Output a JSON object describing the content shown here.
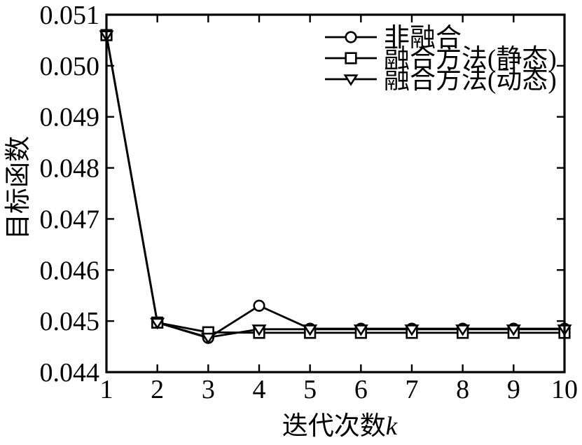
{
  "figure": {
    "background_color": "#ffffff",
    "foreground_color": "#000000"
  },
  "chart_data": {
    "type": "line",
    "title": "",
    "xlabel": "迭代次数k",
    "xlabel_prefix": "迭代次数",
    "xlabel_italic": "k",
    "ylabel": "目标函数",
    "x": [
      1,
      2,
      3,
      4,
      5,
      6,
      7,
      8,
      9,
      10
    ],
    "xlim": [
      1,
      10
    ],
    "ylim": [
      0.044,
      0.051
    ],
    "xticks": [
      "1",
      "2",
      "3",
      "4",
      "5",
      "6",
      "7",
      "8",
      "9",
      "10"
    ],
    "yticks": [
      "0.044",
      "0.045",
      "0.046",
      "0.047",
      "0.048",
      "0.049",
      "0.050",
      "0.051"
    ],
    "grid": false,
    "legend_position": "upper-right-inside",
    "line_color": "#000000",
    "marker_fill": "#ffffff",
    "series": [
      {
        "name": "非融合",
        "marker": "circle",
        "values": [
          0.0506,
          0.04497,
          0.04467,
          0.0453,
          0.04485,
          0.04485,
          0.04485,
          0.04485,
          0.04485,
          0.04485
        ]
      },
      {
        "name": "融合方法(静态)",
        "marker": "square",
        "values": [
          0.0506,
          0.04497,
          0.04478,
          0.04477,
          0.04477,
          0.04477,
          0.04477,
          0.04477,
          0.04477,
          0.04477
        ]
      },
      {
        "name": "融合方法(动态)",
        "marker": "triangle-down",
        "values": [
          0.0506,
          0.04497,
          0.04468,
          0.04484,
          0.04484,
          0.04484,
          0.04484,
          0.04484,
          0.04484,
          0.04484
        ]
      }
    ]
  }
}
